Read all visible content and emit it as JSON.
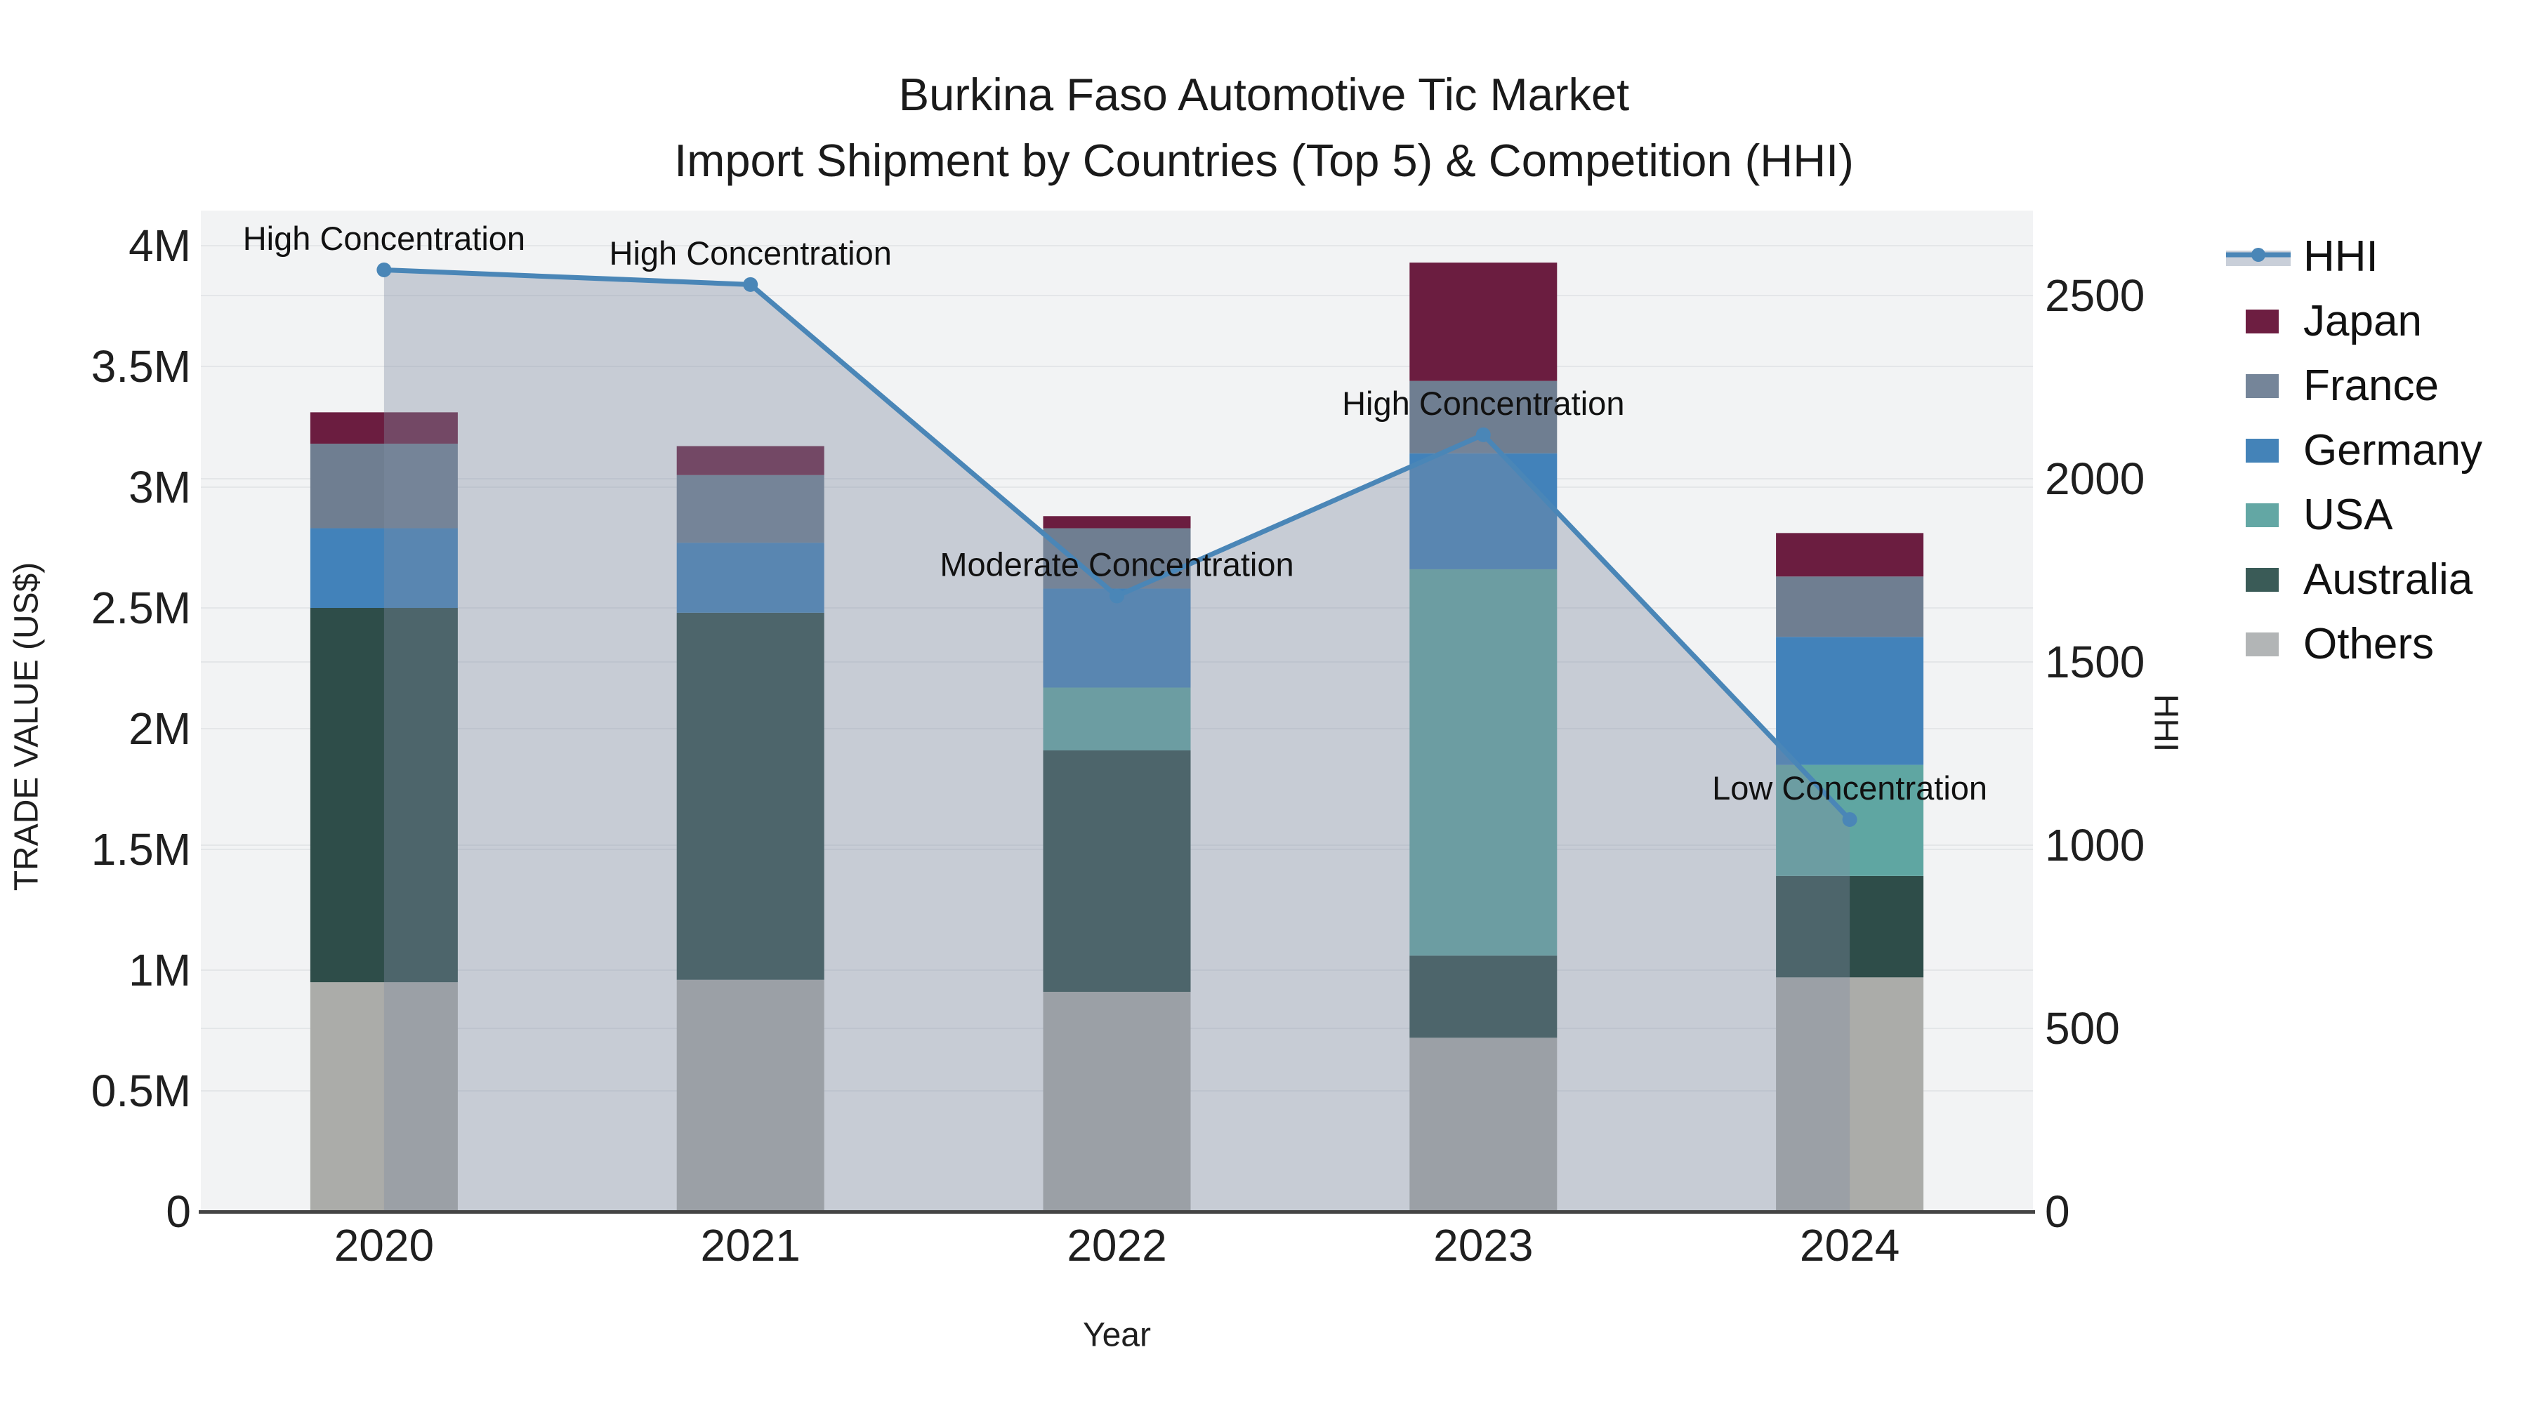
{
  "title": {
    "line1": "Burkina Faso Automotive Tic Market",
    "line2": "Import Shipment by Countries (Top 5) & Competition (HHI)"
  },
  "colors": {
    "figure_bg": "#ffffff",
    "plot_bg": "#f2f3f4",
    "grid": "#e4e6e8",
    "axis_line": "#444444",
    "text": "#1f1f1f",
    "annotation_text": "#111111"
  },
  "chart_data": {
    "type": "stacked-bar+line",
    "title": "Burkina Faso Automotive Tic Market — Import Shipment by Countries (Top 5) & Competition (HHI)",
    "categories": [
      "2020",
      "2021",
      "2022",
      "2023",
      "2024"
    ],
    "xlabel": "Year",
    "ylabel_left": "TRADE VALUE (US$)",
    "ylabel_right": "HHI",
    "ylim_left_musd": [
      0,
      4.14
    ],
    "ylim_right_hhi": [
      0,
      2732
    ],
    "grid": true,
    "legend_position": "right",
    "yticks_left": {
      "values": [
        0,
        0.5,
        1,
        1.5,
        2,
        2.5,
        3,
        3.5,
        4
      ],
      "labels": [
        "0",
        "0.5M",
        "1M",
        "1.5M",
        "2M",
        "2.5M",
        "3M",
        "3.5M",
        "4M"
      ]
    },
    "yticks_right": {
      "values": [
        0,
        500,
        1000,
        1500,
        2000,
        2500
      ],
      "labels": [
        "0",
        "500",
        "1000",
        "1500",
        "2000",
        "2500"
      ]
    },
    "bar_series": [
      {
        "name": "Others",
        "color": "#abaca9",
        "legend_color": "#b2b5b6",
        "values_musd": [
          0.95,
          0.96,
          0.91,
          0.72,
          0.97
        ]
      },
      {
        "name": "Australia",
        "color": "#2e4d49",
        "legend_color": "#3a5b57",
        "values_musd": [
          1.55,
          1.52,
          1.0,
          0.34,
          0.42
        ]
      },
      {
        "name": "USA",
        "color": "#5fa6a2",
        "legend_color": "#63a7a4",
        "values_musd": [
          0.0,
          0.0,
          0.26,
          1.6,
          0.46
        ]
      },
      {
        "name": "Germany",
        "color": "#4282ba",
        "legend_color": "#4483b8",
        "values_musd": [
          0.33,
          0.29,
          0.41,
          0.48,
          0.53
        ]
      },
      {
        "name": "France",
        "color": "#6f7e91",
        "legend_color": "#758599",
        "values_musd": [
          0.35,
          0.28,
          0.25,
          0.3,
          0.25
        ]
      },
      {
        "name": "Japan",
        "color": "#6b1d40",
        "legend_color": "#6d1e41",
        "values_musd": [
          0.13,
          0.12,
          0.05,
          0.49,
          0.18
        ]
      }
    ],
    "bar_totals_musd": [
      3.31,
      3.17,
      2.88,
      3.93,
      2.81
    ],
    "line_series": {
      "name": "HHI",
      "axis": "right",
      "color": "#4a86b7",
      "area_fill": "rgba(128,142,164,0.38)",
      "legend_band": "#c9cfd9",
      "marker": "circle",
      "values": [
        2570,
        2530,
        1680,
        2120,
        1070
      ]
    },
    "annotations": [
      {
        "category": "2020",
        "text": "High Concentration"
      },
      {
        "category": "2021",
        "text": "High Concentration"
      },
      {
        "category": "2022",
        "text": "Moderate Concentration"
      },
      {
        "category": "2023",
        "text": "High Concentration"
      },
      {
        "category": "2024",
        "text": "Low Concentration"
      }
    ]
  }
}
